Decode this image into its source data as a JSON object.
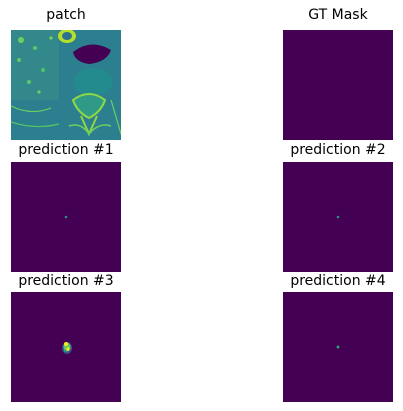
{
  "panels": [
    {
      "title": "patch",
      "colormap": "viridis",
      "content": "ct-slice"
    },
    {
      "title": "GT Mask",
      "colormap": "viridis",
      "content": "empty"
    },
    {
      "title": "prediction #1",
      "colormap": "viridis",
      "content": "single-dot"
    },
    {
      "title": "prediction #2",
      "colormap": "viridis",
      "content": "single-dot"
    },
    {
      "title": "prediction #3",
      "colormap": "viridis",
      "content": "blob"
    },
    {
      "title": "prediction #4",
      "colormap": "viridis",
      "content": "single-dot"
    }
  ],
  "colors": {
    "background_purple": "#440154",
    "dot_teal": "#21918c",
    "blob_yellow": "#fde725",
    "blob_green": "#5ec962",
    "patch_base_teal": "#2a788e"
  }
}
